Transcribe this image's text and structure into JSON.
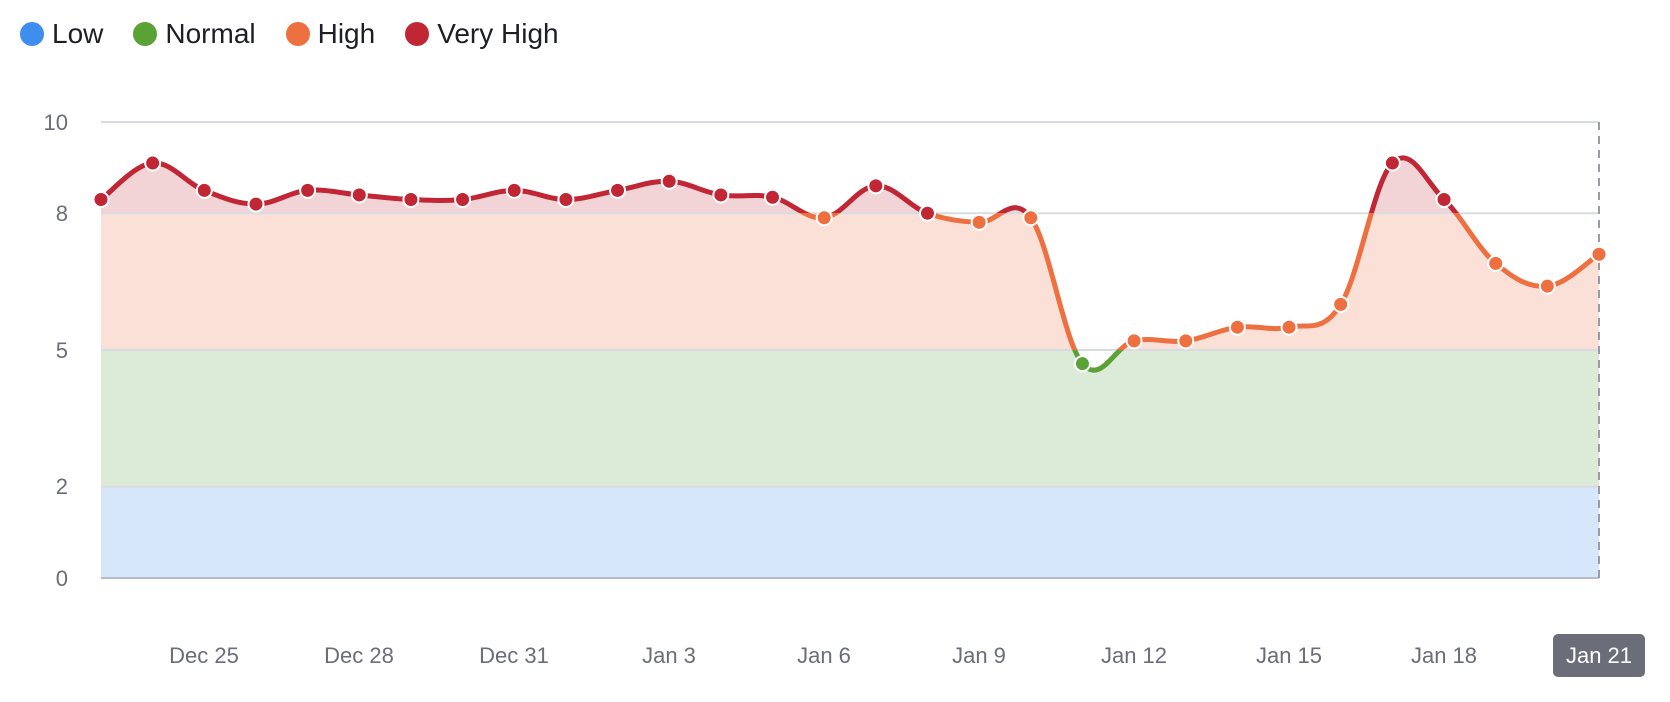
{
  "legend": {
    "items": [
      {
        "label": "Low",
        "color": "#3e8ef0"
      },
      {
        "label": "Normal",
        "color": "#5aa136"
      },
      {
        "label": "High",
        "color": "#ee6f3f"
      },
      {
        "label": "Very High",
        "color": "#c02634"
      }
    ]
  },
  "axis": {
    "y_ticks": [
      "10",
      "8",
      "5",
      "2",
      "0"
    ],
    "x_ticks": [
      "Dec 25",
      "Dec 28",
      "Dec 31",
      "Jan 3",
      "Jan 6",
      "Jan 9",
      "Jan 12",
      "Jan 15",
      "Jan 18"
    ],
    "x_highlight": "Jan 21"
  },
  "chart_data": {
    "type": "line",
    "title": "",
    "xlabel": "",
    "ylabel": "",
    "ylim": [
      0,
      10
    ],
    "y_ticks": [
      0,
      2,
      5,
      8,
      10
    ],
    "grid": true,
    "legend_position": "top-left",
    "bands": [
      {
        "name": "Low",
        "from": 0,
        "to": 2,
        "color": "#3e8ef0",
        "fill": "#d6e6fb"
      },
      {
        "name": "Normal",
        "from": 2,
        "to": 5,
        "color": "#5aa136",
        "fill": "#dcebd7"
      },
      {
        "name": "High",
        "from": 5,
        "to": 8,
        "color": "#ee6f3f",
        "fill": "#fae0d7"
      },
      {
        "name": "Very High",
        "from": 8,
        "to": 10,
        "color": "#c02634",
        "fill": "#f2d3d6"
      }
    ],
    "x": [
      "Dec 23",
      "Dec 24",
      "Dec 25",
      "Dec 26",
      "Dec 27",
      "Dec 28",
      "Dec 29",
      "Dec 30",
      "Dec 31",
      "Jan 1",
      "Jan 2",
      "Jan 3",
      "Jan 4",
      "Jan 5",
      "Jan 6",
      "Jan 7",
      "Jan 8",
      "Jan 9",
      "Jan 10",
      "Jan 11",
      "Jan 12",
      "Jan 13",
      "Jan 14",
      "Jan 15",
      "Jan 16",
      "Jan 17",
      "Jan 18",
      "Jan 19",
      "Jan 20",
      "Jan 21"
    ],
    "values": [
      8.3,
      9.1,
      8.5,
      8.2,
      8.5,
      8.4,
      8.3,
      8.3,
      8.5,
      8.3,
      8.5,
      8.7,
      8.4,
      8.35,
      7.9,
      8.6,
      8.0,
      7.8,
      7.9,
      4.7,
      5.2,
      5.2,
      5.5,
      5.5,
      6.0,
      9.1,
      8.3,
      6.9,
      6.4,
      7.1
    ],
    "highlighted_x": "Jan 21"
  }
}
